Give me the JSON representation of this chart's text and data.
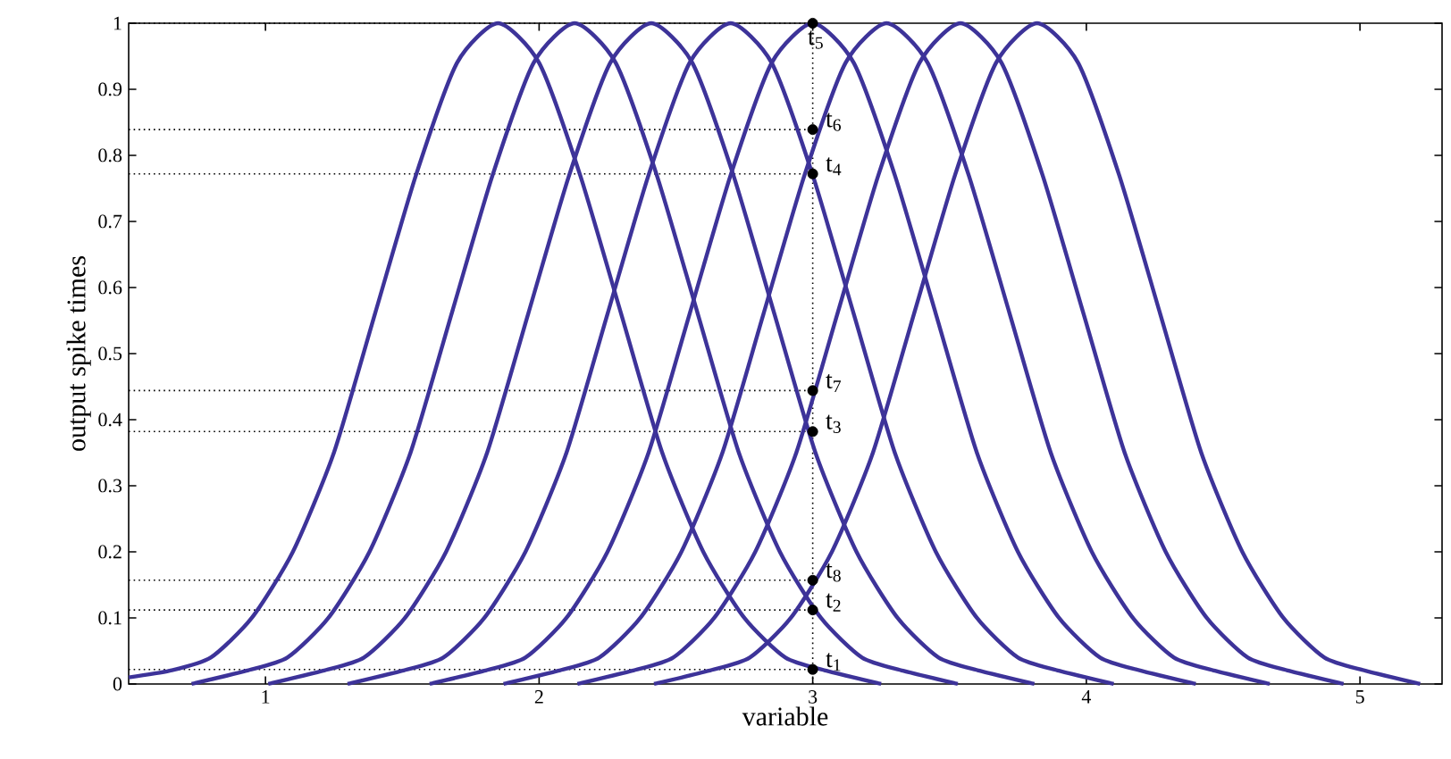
{
  "chart_data": {
    "type": "line",
    "xlabel": "variable",
    "ylabel": "output spike times",
    "xlim": [
      0.5,
      5.3
    ],
    "ylim": [
      0,
      1
    ],
    "xticks": [
      1,
      2,
      3,
      4,
      5
    ],
    "yticks": [
      0,
      0.1,
      0.2,
      0.3,
      0.4,
      0.5,
      0.6,
      0.7,
      0.8,
      0.9,
      1
    ],
    "grid": false,
    "line_style": "solid",
    "series": [
      {
        "color": "#3d3399",
        "x": [
          0.5,
          0.65,
          0.8,
          0.95,
          1.1,
          1.25,
          1.4,
          1.55,
          1.7,
          1.85,
          2.0,
          2.15,
          2.3,
          2.45,
          2.6,
          2.75,
          2.9,
          3.05,
          3.25
        ],
        "values": [
          0.01,
          0.02,
          0.04,
          0.1,
          0.2,
          0.35,
          0.56,
          0.77,
          0.94,
          1,
          0.94,
          0.77,
          0.56,
          0.35,
          0.2,
          0.1,
          0.04,
          0.02,
          0
        ]
      },
      {
        "color": "#3d3399",
        "x": [
          0.73,
          0.93,
          1.08,
          1.23,
          1.38,
          1.53,
          1.68,
          1.83,
          1.98,
          2.13,
          2.28,
          2.43,
          2.58,
          2.73,
          2.88,
          3.03,
          3.18,
          3.33,
          3.53
        ],
        "values": [
          0,
          0.02,
          0.04,
          0.1,
          0.2,
          0.35,
          0.56,
          0.77,
          0.94,
          1,
          0.94,
          0.77,
          0.56,
          0.35,
          0.2,
          0.1,
          0.04,
          0.02,
          0
        ]
      },
      {
        "color": "#3d3399",
        "x": [
          1.01,
          1.21,
          1.36,
          1.51,
          1.66,
          1.81,
          1.96,
          2.11,
          2.26,
          2.41,
          2.56,
          2.71,
          2.86,
          3.01,
          3.16,
          3.31,
          3.46,
          3.61,
          3.81
        ],
        "values": [
          0,
          0.02,
          0.04,
          0.1,
          0.2,
          0.35,
          0.56,
          0.77,
          0.94,
          1,
          0.94,
          0.77,
          0.56,
          0.35,
          0.2,
          0.1,
          0.04,
          0.02,
          0
        ]
      },
      {
        "color": "#3d3399",
        "x": [
          1.3,
          1.5,
          1.65,
          1.8,
          1.95,
          2.1,
          2.25,
          2.4,
          2.55,
          2.7,
          2.85,
          3.0,
          3.15,
          3.3,
          3.45,
          3.6,
          3.75,
          3.9,
          4.1
        ],
        "values": [
          0,
          0.02,
          0.04,
          0.1,
          0.2,
          0.35,
          0.56,
          0.77,
          0.94,
          1,
          0.94,
          0.77,
          0.56,
          0.35,
          0.2,
          0.1,
          0.04,
          0.02,
          0
        ]
      },
      {
        "color": "#3d3399",
        "x": [
          1.6,
          1.8,
          1.95,
          2.1,
          2.25,
          2.4,
          2.55,
          2.7,
          2.85,
          3.0,
          3.15,
          3.3,
          3.45,
          3.6,
          3.75,
          3.9,
          4.05,
          4.2,
          4.4
        ],
        "values": [
          0,
          0.02,
          0.04,
          0.1,
          0.2,
          0.35,
          0.56,
          0.77,
          0.94,
          1,
          0.94,
          0.77,
          0.56,
          0.35,
          0.2,
          0.1,
          0.04,
          0.02,
          0
        ]
      },
      {
        "color": "#3d3399",
        "x": [
          1.87,
          2.07,
          2.22,
          2.37,
          2.52,
          2.67,
          2.82,
          2.97,
          3.12,
          3.27,
          3.42,
          3.57,
          3.72,
          3.87,
          4.02,
          4.17,
          4.32,
          4.47,
          4.67
        ],
        "values": [
          0,
          0.02,
          0.04,
          0.1,
          0.2,
          0.35,
          0.56,
          0.77,
          0.94,
          1,
          0.94,
          0.77,
          0.56,
          0.35,
          0.2,
          0.1,
          0.04,
          0.02,
          0
        ]
      },
      {
        "color": "#3d3399",
        "x": [
          2.14,
          2.34,
          2.49,
          2.64,
          2.79,
          2.94,
          3.09,
          3.24,
          3.39,
          3.54,
          3.69,
          3.84,
          3.99,
          4.14,
          4.29,
          4.44,
          4.59,
          4.74,
          4.94
        ],
        "values": [
          0,
          0.02,
          0.04,
          0.1,
          0.2,
          0.35,
          0.56,
          0.77,
          0.94,
          1,
          0.94,
          0.77,
          0.56,
          0.35,
          0.2,
          0.1,
          0.04,
          0.02,
          0
        ]
      },
      {
        "color": "#3d3399",
        "x": [
          2.42,
          2.62,
          2.77,
          2.92,
          3.07,
          3.22,
          3.37,
          3.52,
          3.67,
          3.82,
          3.97,
          4.12,
          4.27,
          4.42,
          4.57,
          4.72,
          4.87,
          5.02,
          5.22
        ],
        "values": [
          0,
          0.02,
          0.04,
          0.1,
          0.2,
          0.35,
          0.56,
          0.77,
          0.94,
          1,
          0.94,
          0.77,
          0.56,
          0.35,
          0.2,
          0.1,
          0.04,
          0.02,
          0
        ]
      },
      {
        "type": "scatter",
        "marker": "circle",
        "color": "#000000",
        "x": [
          3,
          3,
          3,
          3,
          3,
          3,
          3,
          3
        ],
        "values": [
          0.022,
          0.112,
          0.382,
          0.772,
          1,
          0.839,
          0.444,
          0.157
        ]
      }
    ],
    "ref_lines": [
      {
        "axis": "x",
        "value": 3,
        "line_style": "dotted"
      },
      {
        "axis": "y",
        "value": 0.022,
        "line_style": "dotted"
      },
      {
        "axis": "y",
        "value": 0.112,
        "line_style": "dotted"
      },
      {
        "axis": "y",
        "value": 0.382,
        "line_style": "dotted"
      },
      {
        "axis": "y",
        "value": 0.772,
        "line_style": "dotted"
      },
      {
        "axis": "y",
        "value": 1,
        "line_style": "dotted"
      },
      {
        "axis": "y",
        "value": 0.839,
        "line_style": "dotted"
      },
      {
        "axis": "y",
        "value": 0.444,
        "line_style": "dotted"
      },
      {
        "axis": "y",
        "value": 0.157,
        "line_style": "dotted"
      }
    ],
    "annotations": [
      "t$_{1}$",
      "t$_{2}$",
      "t$_{3}$",
      "t$_{4}$",
      "t$_{5}$",
      "t$_{6}$",
      "t$_{7}$",
      "t$_{8}$"
    ]
  }
}
